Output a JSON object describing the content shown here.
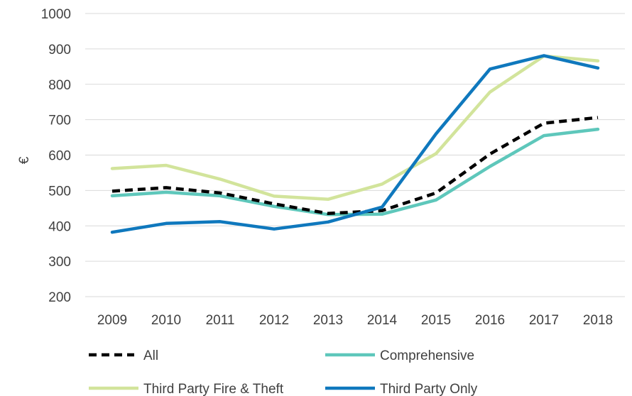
{
  "chart_data": {
    "type": "line",
    "title": "",
    "xlabel": "",
    "ylabel": "€",
    "ylim": [
      200,
      1000
    ],
    "yticks": [
      200,
      300,
      400,
      500,
      600,
      700,
      800,
      900,
      1000
    ],
    "categories": [
      "2009",
      "2010",
      "2011",
      "2012",
      "2013",
      "2014",
      "2015",
      "2016",
      "2017",
      "2018"
    ],
    "grid": true,
    "legend_position": "bottom",
    "series": [
      {
        "name": "All",
        "color": "#000000",
        "dashed": true,
        "values": [
          498,
          508,
          493,
          462,
          435,
          443,
          493,
          603,
          690,
          706
        ]
      },
      {
        "name": "Comprehensive",
        "color": "#5ec7bb",
        "dashed": false,
        "values": [
          485,
          495,
          485,
          455,
          432,
          433,
          473,
          568,
          655,
          673
        ]
      },
      {
        "name": "Third Party Fire & Theft",
        "color": "#d2e49b",
        "dashed": false,
        "values": [
          562,
          571,
          532,
          484,
          475,
          518,
          604,
          778,
          880,
          866
        ]
      },
      {
        "name": "Third Party Only",
        "color": "#0f78bd",
        "dashed": false,
        "values": [
          382,
          407,
          412,
          391,
          411,
          453,
          660,
          843,
          881,
          846
        ]
      }
    ]
  }
}
